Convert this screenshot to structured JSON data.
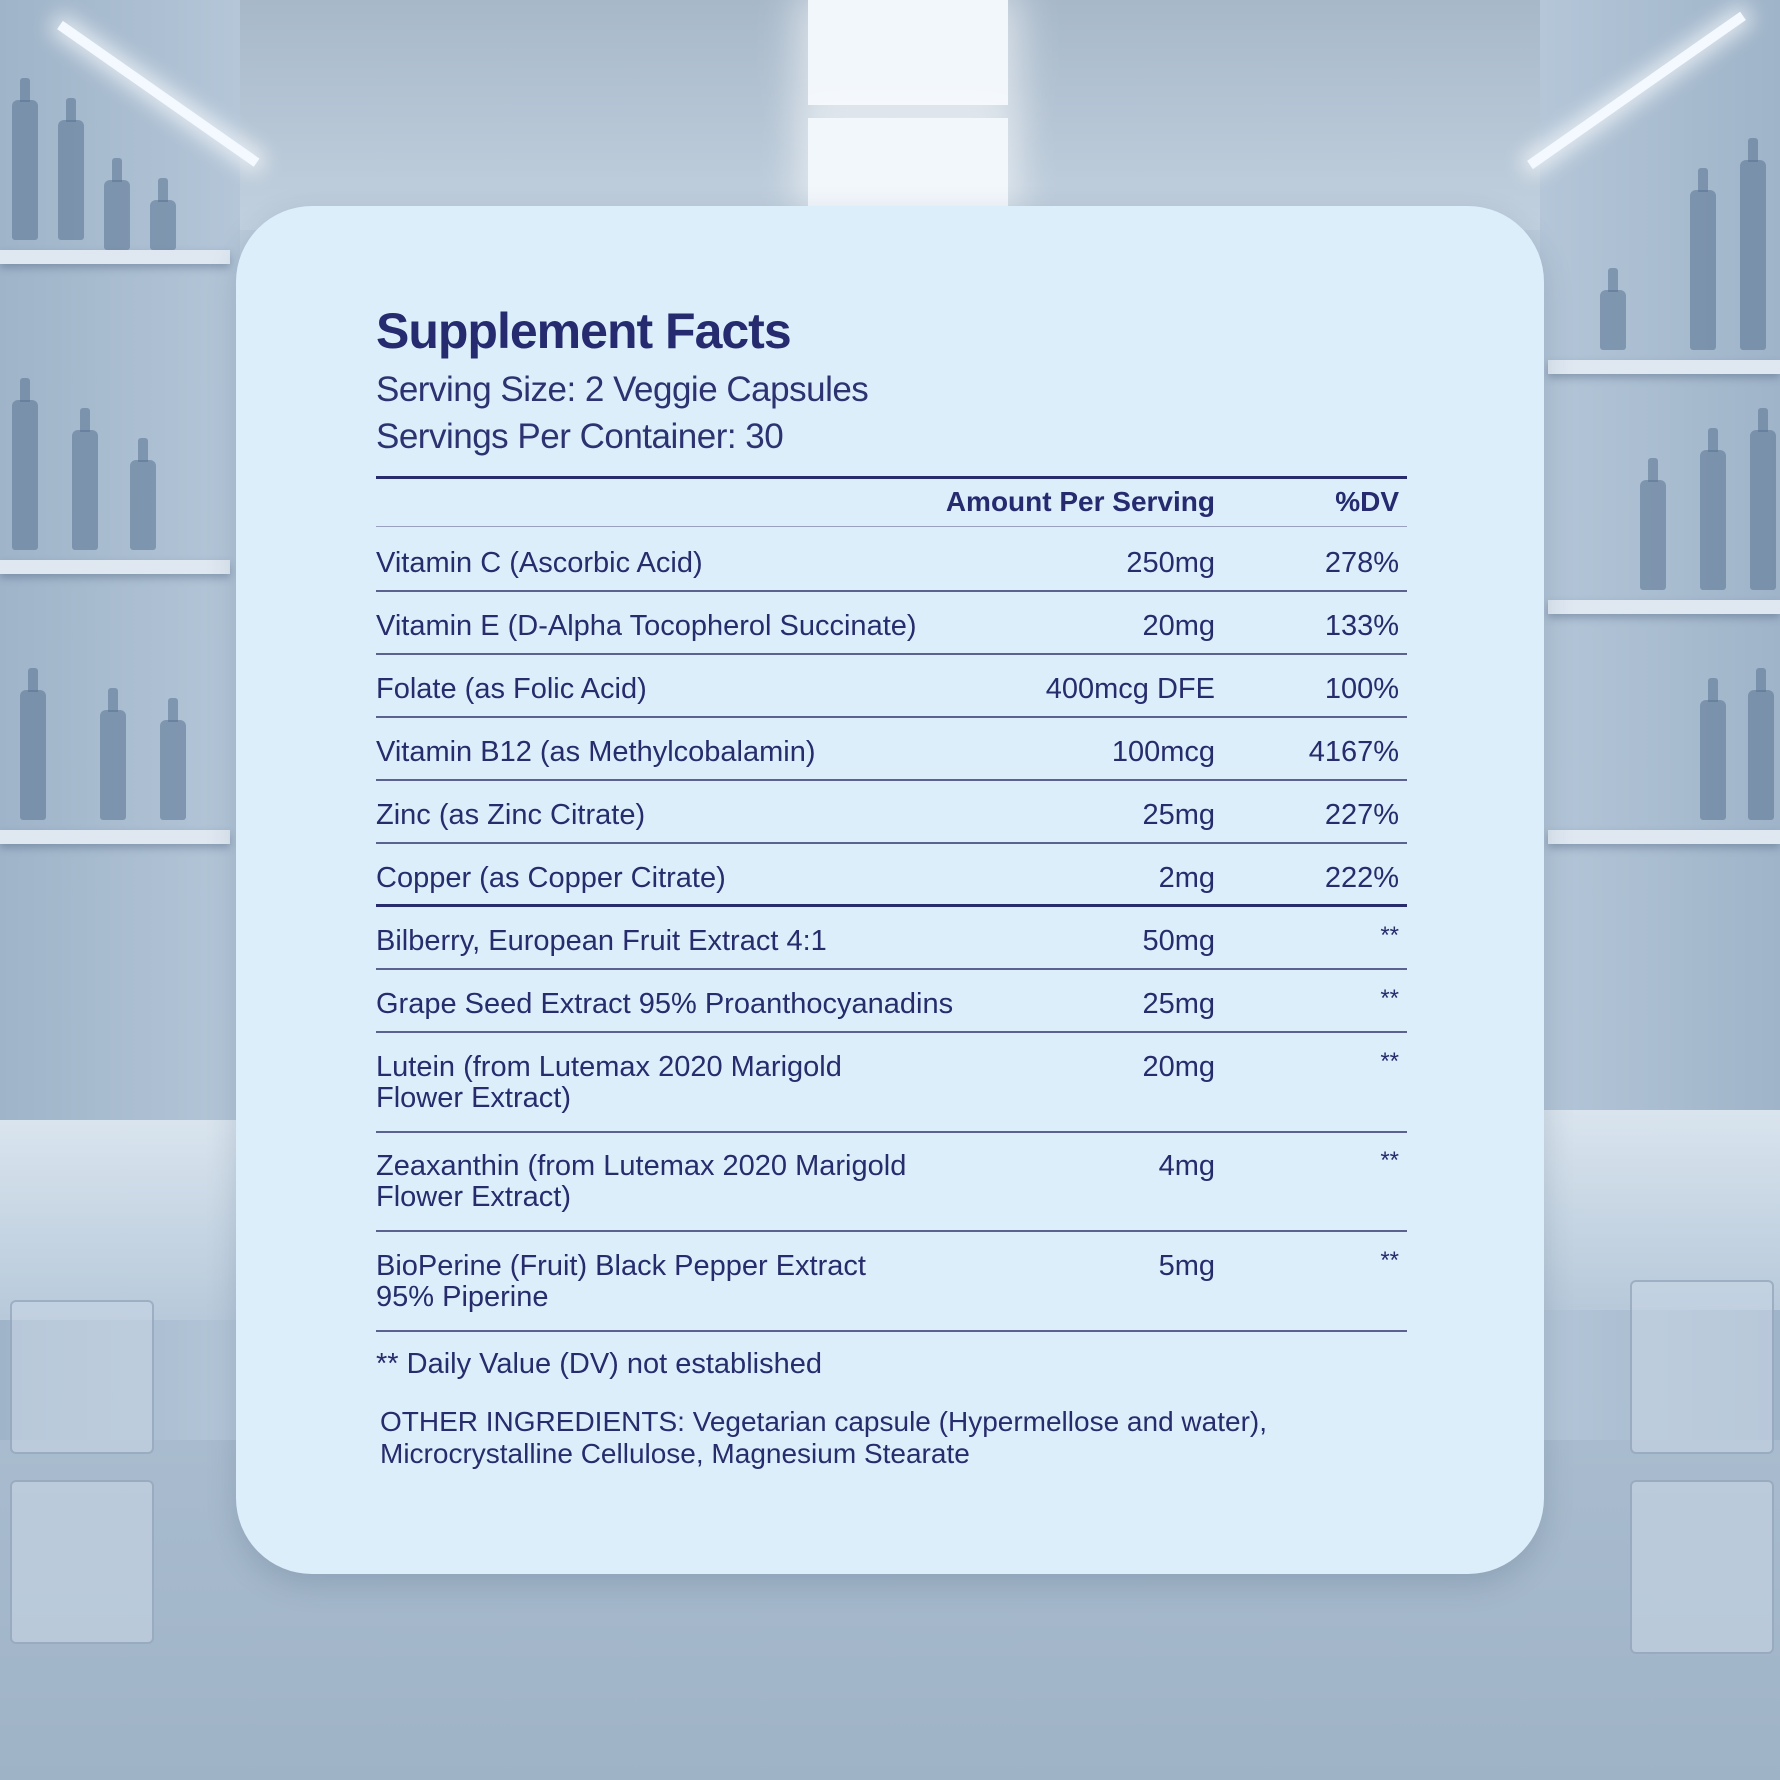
{
  "title": "Supplement Facts",
  "serving_size": "Serving Size: 2 Veggie Capsules",
  "servings_per_container": "Servings Per Container: 30",
  "header": {
    "amount": "Amount Per Serving",
    "dv": "%DV"
  },
  "rows": [
    {
      "name": "Vitamin C (Ascorbic Acid)",
      "amount": "250mg",
      "dv": "278%"
    },
    {
      "name": "Vitamin E (D-Alpha Tocopherol Succinate)",
      "amount": "20mg",
      "dv": "133%"
    },
    {
      "name": "Folate (as Folic Acid)",
      "amount": "400mcg DFE",
      "dv": "100%"
    },
    {
      "name": "Vitamin B12 (as Methylcobalamin)",
      "amount": "100mcg",
      "dv": "4167%"
    },
    {
      "name": "Zinc (as Zinc Citrate)",
      "amount": "25mg",
      "dv": "227%"
    },
    {
      "name": "Copper (as Copper Citrate)",
      "amount": "2mg",
      "dv": "222%"
    },
    {
      "name": "Bilberry, European Fruit Extract 4:1",
      "amount": "50mg",
      "dv": "**"
    },
    {
      "name": "Grape Seed Extract 95% Proanthocyanadins",
      "amount": "25mg",
      "dv": "**"
    },
    {
      "name": "Lutein (from Lutemax 2020 Marigold Flower Extract)",
      "amount": "20mg",
      "dv": "**"
    },
    {
      "name": "Zeaxanthin (from Lutemax 2020 Marigold Flower Extract)",
      "amount": "4mg",
      "dv": "**"
    },
    {
      "name": "BioPerine (Fruit) Black Pepper Extract 95% Piperine",
      "amount": "5mg",
      "dv": "**"
    }
  ],
  "footnote": "** Daily Value (DV) not established",
  "other_ingredients": "OTHER INGREDIENTS: Vegetarian capsule (Hypermellose and water), Microcrystalline Cellulose, Magnesium Stearate"
}
